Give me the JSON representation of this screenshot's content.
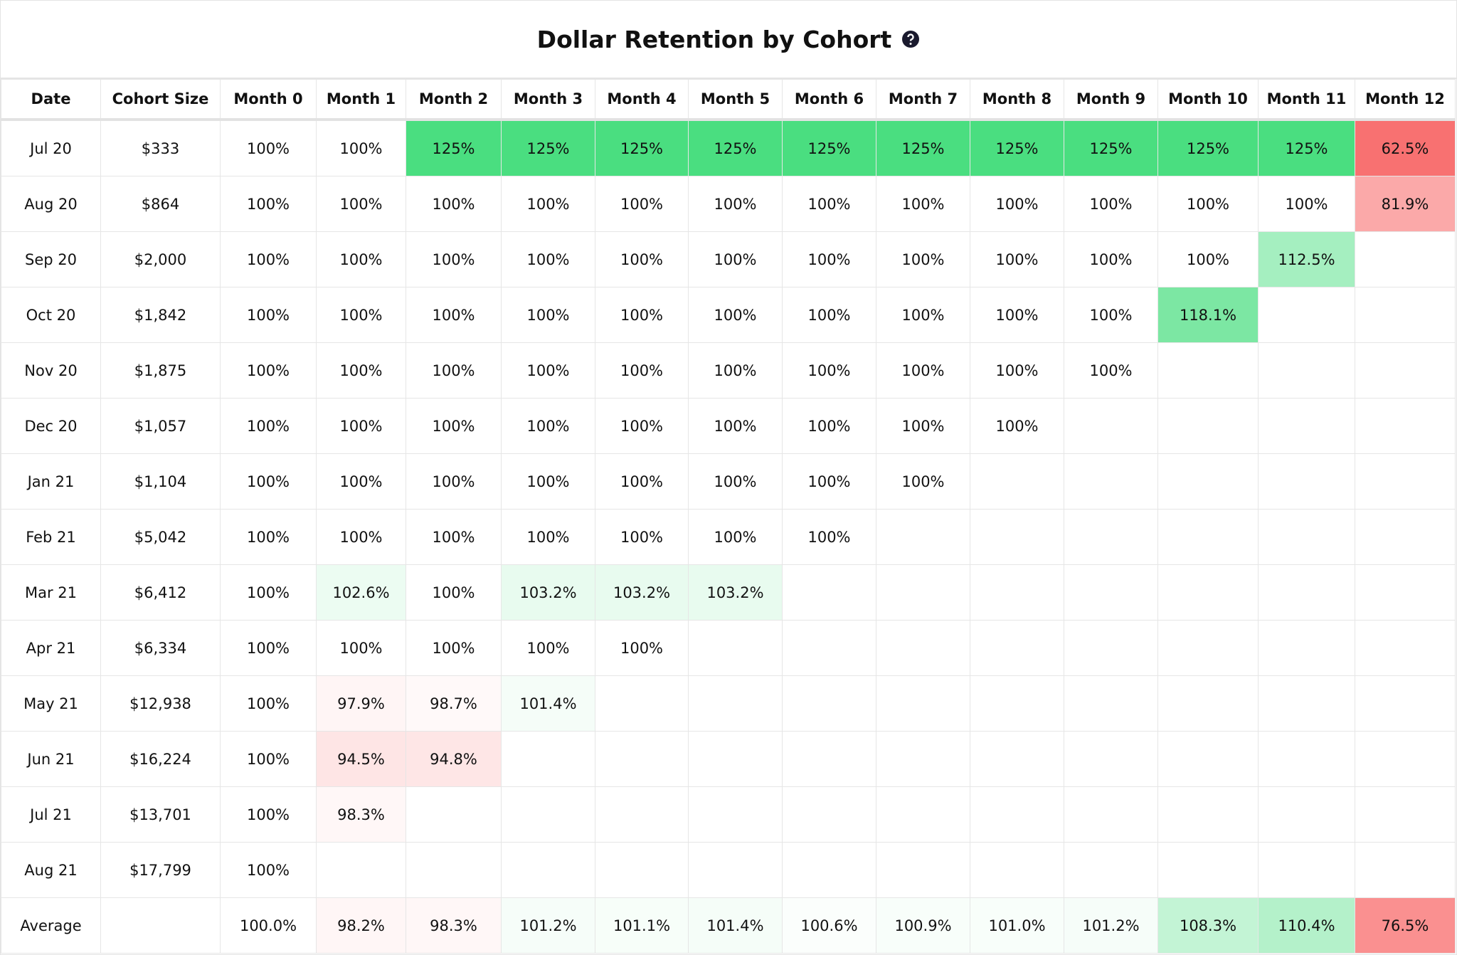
{
  "header": {
    "title": "Dollar Retention by Cohort"
  },
  "table": {
    "columns": [
      "Date",
      "Cohort Size",
      "Month 0",
      "Month 1",
      "Month 2",
      "Month 3",
      "Month 4",
      "Month 5",
      "Month 6",
      "Month 7",
      "Month 8",
      "Month 9",
      "Month 10",
      "Month 11",
      "Month 12"
    ],
    "rows": [
      [
        "Jul 20",
        "$333",
        "100%",
        "100%",
        "125%",
        "125%",
        "125%",
        "125%",
        "125%",
        "125%",
        "125%",
        "125%",
        "125%",
        "125%",
        "62.5%"
      ],
      [
        "Aug 20",
        "$864",
        "100%",
        "100%",
        "100%",
        "100%",
        "100%",
        "100%",
        "100%",
        "100%",
        "100%",
        "100%",
        "100%",
        "100%",
        "81.9%"
      ],
      [
        "Sep 20",
        "$2,000",
        "100%",
        "100%",
        "100%",
        "100%",
        "100%",
        "100%",
        "100%",
        "100%",
        "100%",
        "100%",
        "100%",
        "112.5%"
      ],
      [
        "Oct 20",
        "$1,842",
        "100%",
        "100%",
        "100%",
        "100%",
        "100%",
        "100%",
        "100%",
        "100%",
        "100%",
        "100%",
        "118.1%"
      ],
      [
        "Nov 20",
        "$1,875",
        "100%",
        "100%",
        "100%",
        "100%",
        "100%",
        "100%",
        "100%",
        "100%",
        "100%",
        "100%"
      ],
      [
        "Dec 20",
        "$1,057",
        "100%",
        "100%",
        "100%",
        "100%",
        "100%",
        "100%",
        "100%",
        "100%",
        "100%"
      ],
      [
        "Jan 21",
        "$1,104",
        "100%",
        "100%",
        "100%",
        "100%",
        "100%",
        "100%",
        "100%",
        "100%"
      ],
      [
        "Feb 21",
        "$5,042",
        "100%",
        "100%",
        "100%",
        "100%",
        "100%",
        "100%",
        "100%"
      ],
      [
        "Mar 21",
        "$6,412",
        "100%",
        "102.6%",
        "100%",
        "103.2%",
        "103.2%",
        "103.2%"
      ],
      [
        "Apr 21",
        "$6,334",
        "100%",
        "100%",
        "100%",
        "100%",
        "100%"
      ],
      [
        "May 21",
        "$12,938",
        "100%",
        "97.9%",
        "98.7%",
        "101.4%"
      ],
      [
        "Jun 21",
        "$16,224",
        "100%",
        "94.5%",
        "94.8%"
      ],
      [
        "Jul 21",
        "$13,701",
        "100%",
        "98.3%"
      ],
      [
        "Aug 21",
        "$17,799",
        "100%"
      ]
    ],
    "average": {
      "label": "Average",
      "values": [
        "100.0%",
        "98.2%",
        "98.3%",
        "101.2%",
        "101.1%",
        "101.4%",
        "100.6%",
        "100.9%",
        "101.0%",
        "101.2%",
        "108.3%",
        "110.4%",
        "76.5%"
      ]
    }
  }
}
